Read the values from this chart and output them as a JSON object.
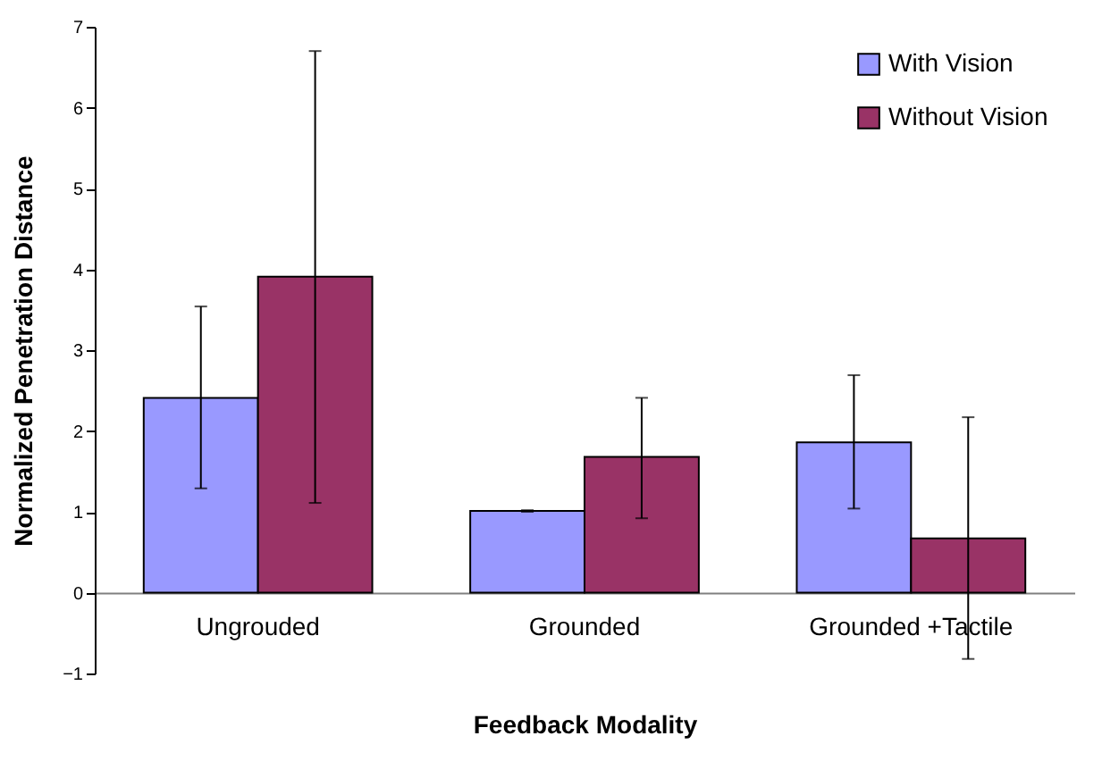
{
  "chart_data": {
    "type": "bar",
    "xlabel": "Feedback Modality",
    "ylabel": "Normalized Penetration Distance",
    "categories": [
      "Ungrouded",
      "Grounded",
      "Grounded +Tactile"
    ],
    "series": [
      {
        "name": "With Vision",
        "color": "#9999ff",
        "values": [
          2.41,
          1.01,
          1.86
        ],
        "errors": [
          [
            1.29,
            3.54
          ],
          [
            1.0,
            1.02
          ],
          [
            1.04,
            2.69
          ]
        ]
      },
      {
        "name": "Without Vision",
        "color": "#993366",
        "values": [
          3.91,
          1.68,
          0.67
        ],
        "errors": [
          [
            1.11,
            6.7
          ],
          [
            0.92,
            2.41
          ],
          [
            -0.82,
            2.17
          ]
        ]
      }
    ],
    "ylim": [
      -1,
      7
    ],
    "yticks": [
      -1,
      0,
      1,
      2,
      3,
      4,
      5,
      6,
      7
    ],
    "grid": false,
    "legend": "top right"
  }
}
